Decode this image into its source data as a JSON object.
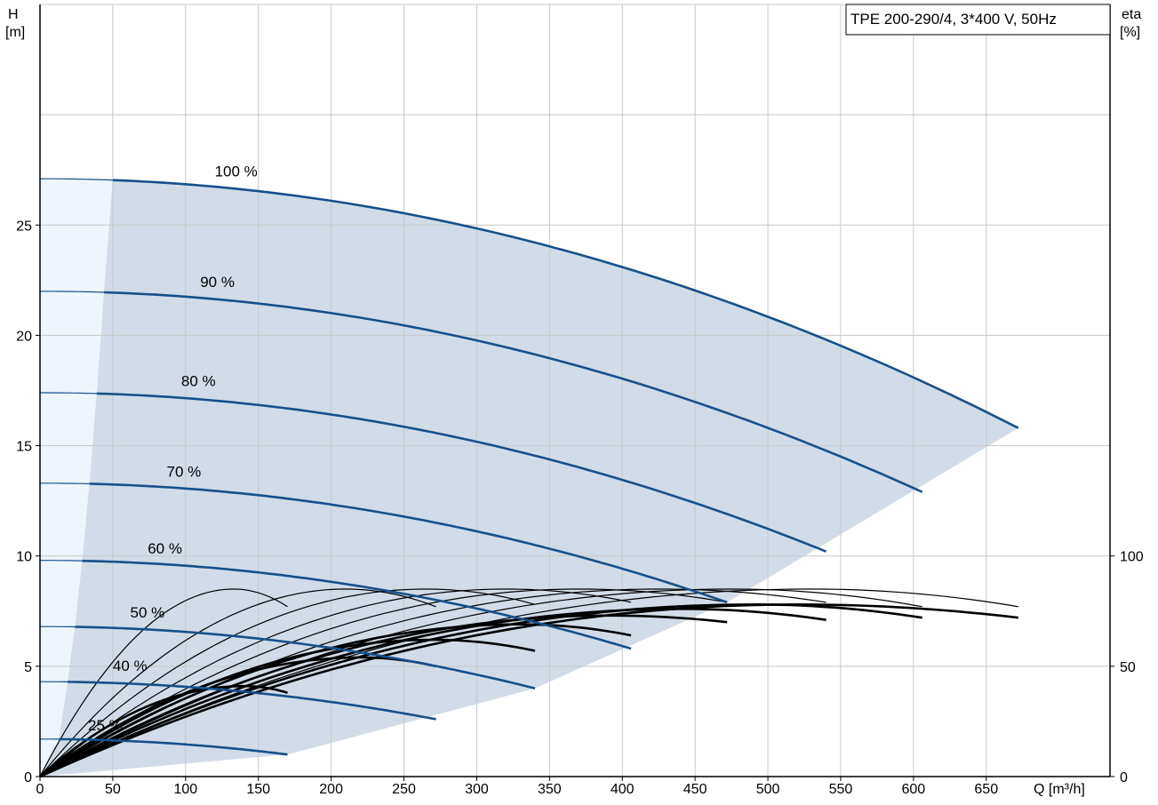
{
  "chart_data": {
    "type": "line",
    "legend": "TPE 200-290/4, 3*400 V, 50Hz",
    "x_axis": {
      "label": "Q [m³/h]",
      "range": [
        0,
        735
      ],
      "ticks": [
        0,
        50,
        100,
        150,
        200,
        250,
        300,
        350,
        400,
        450,
        500,
        550,
        600,
        650
      ]
    },
    "y_axis_left": {
      "label_line1": "H",
      "label_line2": "[m]",
      "range": [
        0,
        35
      ],
      "ticks": [
        0,
        5,
        10,
        15,
        20,
        25
      ],
      "grid_levels": [
        0,
        5,
        10,
        15,
        20,
        25,
        30,
        35
      ]
    },
    "y_axis_right": {
      "label_line1": "eta",
      "label_line2": "[%]",
      "range": [
        0,
        350
      ],
      "ticks": [
        0,
        50,
        100
      ]
    },
    "grid": true,
    "colors": {
      "head_curve": "#17508a",
      "efficiency_curve": "#000000",
      "operating_area": "#d1dce8",
      "low_flow_area": "#eef5fc",
      "grid": "#c8c8c8"
    },
    "head_curves": [
      {
        "label": "100 %",
        "label_at": [
          120,
          27.2
        ],
        "H0": 27.1,
        "qmax": 672,
        "hend": 15.8,
        "qmin": 50
      },
      {
        "label": "90 %",
        "label_at": [
          110,
          22.2
        ],
        "H0": 22.0,
        "qmax": 606,
        "hend": 12.9,
        "qmin": 44
      },
      {
        "label": "80 %",
        "label_at": [
          97,
          17.7
        ],
        "H0": 17.4,
        "qmax": 540,
        "hend": 10.2,
        "qmin": 39
      },
      {
        "label": "70 %",
        "label_at": [
          87,
          13.6
        ],
        "H0": 13.3,
        "qmax": 472,
        "hend": 7.9,
        "qmin": 34
      },
      {
        "label": "60 %",
        "label_at": [
          74,
          10.1
        ],
        "H0": 9.8,
        "qmax": 406,
        "hend": 5.8,
        "qmin": 29
      },
      {
        "label": "50 %",
        "label_at": [
          62,
          7.2
        ],
        "H0": 6.8,
        "qmax": 340,
        "hend": 4.0,
        "qmin": 24
      },
      {
        "label": "40 %",
        "label_at": [
          50,
          4.8
        ],
        "H0": 4.3,
        "qmax": 272,
        "hend": 2.6,
        "qmin": 19
      },
      {
        "label": "25 %",
        "label_at": [
          33,
          2.1
        ],
        "H0": 1.7,
        "qmax": 170,
        "hend": 1.0,
        "qmin": 13
      }
    ],
    "efficiency_curves_thin": [
      {
        "qmax": 170,
        "peak_q": 133,
        "peak_eta": 85,
        "end_eta": 77
      },
      {
        "qmax": 272,
        "peak_q": 210,
        "peak_eta": 85,
        "end_eta": 77
      },
      {
        "qmax": 340,
        "peak_q": 265,
        "peak_eta": 85,
        "end_eta": 78
      },
      {
        "qmax": 406,
        "peak_q": 320,
        "peak_eta": 85,
        "end_eta": 79
      },
      {
        "qmax": 472,
        "peak_q": 370,
        "peak_eta": 85,
        "end_eta": 79
      },
      {
        "qmax": 540,
        "peak_q": 425,
        "peak_eta": 85,
        "end_eta": 79
      },
      {
        "qmax": 606,
        "peak_q": 475,
        "peak_eta": 85,
        "end_eta": 77
      },
      {
        "qmax": 672,
        "peak_q": 530,
        "peak_eta": 85,
        "end_eta": 77
      }
    ],
    "efficiency_curves_thick": [
      {
        "qmax": 170,
        "peak_q": 140,
        "peak_eta": 41,
        "end_eta": 38
      },
      {
        "qmax": 272,
        "peak_q": 220,
        "peak_eta": 54,
        "end_eta": 50
      },
      {
        "qmax": 340,
        "peak_q": 270,
        "peak_eta": 62,
        "end_eta": 57
      },
      {
        "qmax": 406,
        "peak_q": 330,
        "peak_eta": 69,
        "end_eta": 64
      },
      {
        "qmax": 472,
        "peak_q": 390,
        "peak_eta": 73,
        "end_eta": 70
      },
      {
        "qmax": 540,
        "peak_q": 440,
        "peak_eta": 76,
        "end_eta": 71
      },
      {
        "qmax": 606,
        "peak_q": 490,
        "peak_eta": 78,
        "end_eta": 72
      },
      {
        "qmax": 672,
        "peak_q": 520,
        "peak_eta": 78,
        "end_eta": 72
      }
    ],
    "operating_area": {
      "top_edge_from_q": 50,
      "bottom_edge": [
        [
          170,
          1.0
        ],
        [
          340,
          4.0
        ],
        [
          472,
          7.9
        ],
        [
          672,
          15.8
        ]
      ],
      "min_flow_edge": [
        [
          50,
          27.1
        ],
        [
          44,
          22.0
        ],
        [
          39,
          17.4
        ],
        [
          34,
          13.3
        ],
        [
          29,
          9.8
        ],
        [
          24,
          6.8
        ],
        [
          19,
          4.3
        ],
        [
          13,
          1.7
        ],
        [
          0,
          0
        ]
      ]
    }
  }
}
